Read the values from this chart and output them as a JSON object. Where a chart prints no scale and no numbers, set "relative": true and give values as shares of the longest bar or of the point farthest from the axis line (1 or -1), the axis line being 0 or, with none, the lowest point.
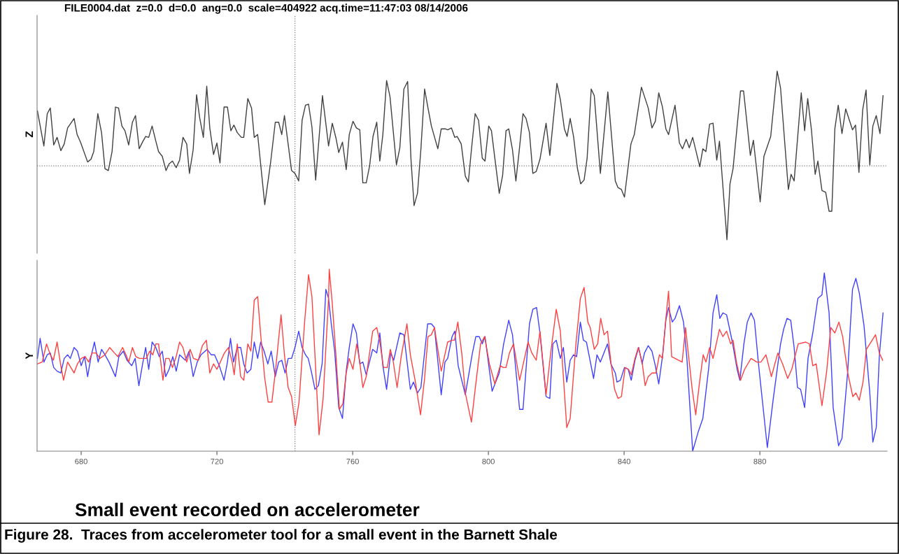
{
  "chart_data": [
    {
      "type": "line",
      "title": "FILE0004.dat  z=0.0  d=0.0  ang=0.0  scale=404922 acq.time=11:47:03 08/14/2006",
      "ylabel": "Z",
      "relative": true,
      "xlim": [
        667,
        917.5
      ],
      "tick_labels": false,
      "line_style": "solid",
      "ref_lines": [
        {
          "axis": "y",
          "value": 0,
          "color": "#808080",
          "line_style": "dotted"
        },
        {
          "axis": "x",
          "value": 743,
          "color": "#808080",
          "line_style": "dotted"
        }
      ],
      "series": [
        {
          "color": "#404040",
          "x": [
            667.1,
            669.0,
            670.0,
            670.9,
            671.9,
            672.9,
            674.0,
            675.0,
            676.0,
            677.9,
            678.8,
            679.8,
            681.9,
            682.9,
            683.7,
            684.9,
            686.0,
            687.0,
            688.0,
            689.1,
            690.1,
            691.0,
            692.0,
            692.9,
            694.0,
            695.1,
            696.0,
            697.1,
            698.2,
            699.0,
            699.9,
            700.9,
            702.0,
            702.8,
            703.9,
            705.0,
            705.9,
            706.9,
            708.0,
            709.0,
            710.0,
            711.1,
            711.9,
            713.0,
            714.0,
            714.9,
            716.0,
            717.0,
            717.9,
            719.0,
            720.0,
            720.9,
            722.1,
            723.1,
            724.1,
            725.0,
            726.0,
            727.2,
            727.9,
            729.1,
            730.2,
            731.0,
            732.0,
            734.1,
            735.8,
            737.2,
            738.2,
            739.1,
            739.9,
            742.0,
            743.0,
            744.1,
            745.1,
            746.1,
            747.0,
            748.0,
            749.1,
            751.1,
            752.9,
            754.0,
            755.1,
            755.9,
            757.0,
            758.1,
            759.0,
            760.1,
            761.1,
            762.1,
            763.0,
            764.0,
            765.0,
            766.0,
            767.1,
            768.0,
            768.9,
            770.0,
            771.0,
            772.9,
            773.9,
            775.1,
            776.2,
            777.2,
            778.1,
            779.1,
            780.1,
            781.2,
            782.2,
            783.2,
            785.1,
            786.1,
            787.3,
            788.0,
            789.1,
            790.1,
            790.8,
            792.0,
            793.2,
            794.1,
            795.0,
            796.1,
            797.1,
            798.2,
            799.0,
            800.1,
            800.9,
            801.9,
            803.2,
            804.2,
            805.2,
            806.0,
            807.1,
            808.1,
            809.0,
            810.2,
            811.1,
            812.1,
            813.1,
            814.1,
            815.2,
            817.0,
            818.1,
            820.2,
            821.2,
            822.4,
            823.2,
            824.1,
            825.1,
            826.2,
            827.2,
            828.2,
            829.1,
            830.3,
            831.2,
            833.0,
            835.2,
            837.4,
            838.2,
            839.2,
            840.1,
            842.0,
            843.0,
            845.1,
            847.1,
            848.2,
            849.2,
            850.2,
            851.3,
            852.3,
            853.1,
            855.0,
            856.3,
            857.2,
            858.3,
            859.2,
            860.2,
            862.3,
            863.2,
            864.1,
            865.2,
            866.2,
            867.3,
            868.1,
            870.3,
            871.2,
            872.1,
            874.3,
            875.2,
            877.2,
            878.1,
            880.1,
            881.2,
            883.2,
            885.1,
            886.1,
            888.4,
            889.2,
            890.1,
            892.2,
            893.2,
            894.1,
            895.2,
            896.3,
            897.1,
            898.3,
            899.4,
            900.4,
            901.2,
            902.1,
            903.1,
            904.2,
            905.3,
            907.3,
            908.2,
            909.2,
            910.3,
            911.3,
            912.4,
            913.3,
            914.3,
            915.4,
            916.3
          ],
          "values": [
            0.58,
            0.21,
            0.55,
            0.61,
            0.22,
            0.3,
            0.16,
            0.23,
            0.4,
            0.5,
            0.33,
            0.25,
            0.04,
            0.07,
            0.15,
            0.55,
            0.35,
            -0.03,
            -0.05,
            0.15,
            0.62,
            0.61,
            0.42,
            0.37,
            0.22,
            0.46,
            0.53,
            0.18,
            0.26,
            0.31,
            0.3,
            0.42,
            0.26,
            0.15,
            0.1,
            -0.05,
            0.02,
            0.05,
            -0.02,
            0.06,
            0.3,
            0.23,
            -0.08,
            0.17,
            0.75,
            0.51,
            0.3,
            0.84,
            0.4,
            0.12,
            0.24,
            0.03,
            0.62,
            0.62,
            0.37,
            0.43,
            0.35,
            0.3,
            0.3,
            0.71,
            0.61,
            0.3,
            0.33,
            -0.41,
            0.03,
            0.46,
            0.46,
            0.33,
            0.53,
            -0.05,
            -0.08,
            -0.16,
            0.48,
            0.64,
            0.65,
            0.41,
            -0.15,
            0.74,
            0.21,
            0.45,
            0.29,
            0.14,
            0.25,
            -0.04,
            0.33,
            0.47,
            0.4,
            0.38,
            -0.18,
            -0.18,
            0.0,
            0.31,
            0.46,
            0.05,
            0.33,
            0.9,
            0.73,
            0.01,
            0.19,
            0.81,
            0.89,
            0.06,
            -0.42,
            -0.29,
            0.17,
            0.81,
            0.61,
            0.42,
            0.18,
            0.39,
            0.39,
            0.38,
            0.4,
            0.3,
            0.31,
            0.23,
            -0.11,
            -0.17,
            0.17,
            0.55,
            0.48,
            0.08,
            0.05,
            0.42,
            0.37,
            0.08,
            -0.29,
            -0.1,
            0.37,
            0.39,
            0.17,
            -0.16,
            0.13,
            0.55,
            0.5,
            0.35,
            -0.08,
            -0.06,
            0.07,
            0.45,
            0.11,
            0.87,
            0.7,
            0.39,
            0.31,
            0.5,
            0.31,
            -0.02,
            -0.19,
            -0.15,
            0.08,
            0.81,
            0.74,
            -0.08,
            0.78,
            -0.16,
            -0.23,
            -0.25,
            -0.33,
            0.23,
            0.33,
            0.83,
            0.61,
            0.4,
            0.47,
            0.77,
            0.62,
            0.39,
            0.33,
            0.64,
            0.24,
            0.18,
            0.28,
            0.19,
            0.3,
            -0.01,
            0.18,
            0.15,
            0.44,
            0.45,
            0.06,
            0.26,
            -0.78,
            -0.19,
            -0.03,
            0.79,
            0.79,
            0.11,
            0.27,
            -0.38,
            0.1,
            0.31,
            1.0,
            0.82,
            -0.25,
            -0.09,
            -0.16,
            0.77,
            0.37,
            0.71,
            0.38,
            -0.09,
            0.05,
            -0.26,
            -0.28,
            -0.48,
            -0.48,
            0.39,
            0.64,
            0.34,
            0.6,
            0.38,
            0.43,
            -0.07,
            0.59,
            0.8,
            0.01,
            0.42,
            0.53,
            0.34,
            0.74
          ]
        }
      ]
    },
    {
      "type": "line",
      "ylabel": "Y",
      "relative": true,
      "xlim": [
        667,
        917.5
      ],
      "xticks": [
        680,
        720,
        760,
        800,
        840,
        880
      ],
      "tick_labels": "x",
      "line_style": "solid",
      "ref_lines": [
        {
          "axis": "x",
          "value": 743,
          "color": "#808080",
          "line_style": "dotted"
        }
      ],
      "annotations": [
        "Small event recorded on accelerometer",
        "Figure 28.  Traces from accelerometer tool for a small event in the Barnett Shale"
      ],
      "series": [
        {
          "color": "#4040ff",
          "x": [
            667.1,
            667.9,
            669.0,
            670.0,
            670.9,
            671.9,
            672.9,
            674.0,
            675.0,
            676.0,
            676.8,
            677.9,
            678.9,
            680.0,
            681.0,
            681.9,
            682.9,
            683.9,
            685.0,
            686.0,
            687.0,
            688.2,
            690.1,
            691.1,
            692.4,
            693.5,
            694.9,
            695.9,
            697.0,
            698.1,
            699.0,
            699.9,
            700.9,
            702.0,
            703.0,
            703.9,
            704.9,
            705.9,
            707.0,
            708.0,
            709.0,
            710.7,
            711.8,
            713.0,
            714.2,
            715.3,
            717.1,
            718.3,
            719.3,
            720.7,
            722.1,
            723.1,
            724.0,
            724.9,
            726.0,
            727.0,
            727.9,
            728.9,
            730.0,
            731.0,
            732.0,
            732.9,
            733.9,
            735.0,
            736.0,
            737.2,
            738.2,
            739.1,
            740.1,
            741.0,
            742.0,
            743.0,
            744.1,
            745.1,
            746.1,
            746.9,
            747.8,
            748.9,
            749.9,
            751.0,
            752.1,
            752.9,
            753.7,
            754.7,
            755.9,
            757.0,
            758.1,
            759.0,
            760.1,
            761.1,
            762.1,
            763.0,
            764.0,
            765.9,
            767.1,
            768.0,
            768.9,
            770.0,
            771.2,
            772.1,
            773.9,
            775.1,
            777.0,
            777.9,
            779.1,
            780.1,
            782.1,
            783.2,
            784.1,
            786.1,
            787.2,
            788.0,
            789.3,
            790.1,
            791.1,
            793.2,
            795.2,
            796.3,
            797.3,
            798.2,
            799.0,
            801.1,
            803.2,
            804.5,
            806.0,
            807.1,
            809.2,
            810.2,
            812.1,
            813.1,
            814.2,
            815.2,
            817.0,
            818.1,
            819.0,
            820.0,
            821.2,
            822.1,
            823.1,
            824.1,
            825.1,
            826.0,
            827.1,
            828.0,
            828.9,
            831.0,
            832.0,
            833.0,
            835.1,
            836.1,
            837.4,
            837.9,
            838.9,
            840.1,
            841.2,
            842.1,
            843.2,
            844.3,
            845.3,
            846.0,
            847.1,
            848.2,
            849.2,
            850.2,
            851.3,
            852.3,
            853.1,
            854.2,
            855.0,
            856.3,
            857.5,
            858.5,
            860.2,
            861.9,
            863.2,
            865.0,
            866.2,
            867.3,
            868.2,
            869.1,
            870.2,
            871.9,
            873.3,
            874.1,
            875.3,
            876.3,
            877.4,
            878.4,
            879.6,
            882.2,
            883.9,
            886.1,
            887.0,
            888.0,
            889.1,
            890.1,
            891.1,
            892.0,
            893.2,
            894.2,
            895.6,
            897.1,
            898.3,
            899.0,
            900.4,
            901.6,
            903.2,
            904.2,
            905.9,
            907.3,
            908.3,
            909.3,
            910.7,
            912.4,
            913.3,
            914.3,
            915.2,
            916.3
          ],
          "values": [
            0.51,
            0.62,
            0.49,
            0.53,
            0.54,
            0.46,
            0.44,
            0.43,
            0.51,
            0.53,
            0.51,
            0.57,
            0.55,
            0.47,
            0.52,
            0.41,
            0.52,
            0.6,
            0.49,
            0.56,
            0.53,
            0.49,
            0.41,
            0.52,
            0.55,
            0.5,
            0.47,
            0.51,
            0.36,
            0.48,
            0.57,
            0.45,
            0.6,
            0.57,
            0.52,
            0.55,
            0.41,
            0.45,
            0.52,
            0.44,
            0.53,
            0.5,
            0.55,
            0.41,
            0.49,
            0.53,
            0.56,
            0.53,
            0.53,
            0.47,
            0.39,
            0.49,
            0.62,
            0.49,
            0.57,
            0.57,
            0.48,
            0.43,
            0.45,
            0.6,
            0.51,
            0.6,
            0.55,
            0.48,
            0.55,
            0.41,
            0.49,
            0.5,
            0.43,
            0.51,
            0.51,
            0.57,
            0.66,
            0.57,
            0.53,
            0.51,
            0.44,
            0.34,
            0.36,
            0.48,
            0.89,
            0.84,
            0.7,
            0.55,
            0.24,
            0.18,
            0.44,
            0.57,
            0.7,
            0.65,
            0.48,
            0.49,
            0.42,
            0.56,
            0.54,
            0.65,
            0.47,
            0.34,
            0.54,
            0.5,
            0.65,
            0.64,
            0.34,
            0.38,
            0.32,
            0.35,
            0.7,
            0.7,
            0.68,
            0.31,
            0.49,
            0.51,
            0.63,
            0.66,
            0.47,
            0.31,
            0.53,
            0.63,
            0.63,
            0.59,
            0.63,
            0.33,
            0.43,
            0.59,
            0.72,
            0.64,
            0.23,
            0.23,
            0.7,
            0.78,
            0.79,
            0.65,
            0.3,
            0.29,
            0.59,
            0.61,
            0.51,
            0.57,
            0.38,
            0.5,
            0.53,
            0.52,
            0.71,
            0.61,
            0.6,
            0.4,
            0.53,
            0.49,
            0.59,
            0.48,
            0.43,
            0.38,
            0.39,
            0.46,
            0.45,
            0.39,
            0.5,
            0.57,
            0.48,
            0.54,
            0.58,
            0.55,
            0.47,
            0.37,
            0.52,
            0.72,
            0.79,
            0.71,
            0.73,
            0.8,
            0.71,
            0.51,
            0.0,
            0.11,
            0.18,
            0.47,
            0.76,
            0.86,
            0.73,
            0.76,
            0.75,
            0.6,
            0.45,
            0.39,
            0.59,
            0.71,
            0.76,
            0.72,
            0.48,
            0.02,
            0.28,
            0.59,
            0.67,
            0.73,
            0.72,
            0.57,
            0.35,
            0.34,
            0.24,
            0.51,
            0.65,
            0.84,
            0.86,
            0.98,
            0.76,
            0.24,
            0.03,
            0.07,
            0.44,
            0.89,
            0.95,
            0.87,
            0.69,
            0.32,
            0.05,
            0.13,
            0.52,
            0.76
          ]
        },
        {
          "color": "#ff4040",
          "x": [
            667.1,
            668.5,
            669.8,
            670.9,
            671.8,
            672.9,
            674.0,
            674.8,
            676.0,
            677.9,
            678.9,
            680.0,
            681.2,
            682.2,
            683.2,
            684.4,
            685.5,
            687.0,
            688.4,
            689.8,
            690.8,
            692.2,
            693.2,
            694.0,
            695.1,
            696.1,
            697.2,
            698.2,
            699.2,
            700.2,
            701.1,
            702.0,
            702.8,
            704.1,
            704.9,
            705.9,
            706.9,
            708.0,
            709.0,
            710.0,
            711.1,
            712.1,
            713.1,
            714.5,
            715.7,
            716.9,
            717.9,
            719.0,
            720.0,
            721.0,
            722.2,
            723.4,
            724.5,
            725.1,
            726.0,
            727.0,
            727.9,
            729.1,
            730.0,
            731.0,
            732.0,
            732.9,
            734.1,
            735.1,
            736.2,
            737.3,
            738.9,
            739.9,
            741.0,
            742.0,
            743.1,
            744.2,
            745.8,
            747.0,
            748.0,
            750.1,
            751.3,
            752.9,
            753.1,
            754.0,
            755.1,
            756.1,
            757.1,
            758.1,
            759.0,
            760.1,
            761.2,
            762.1,
            763.0,
            764.0,
            765.9,
            767.1,
            768.0,
            769.1,
            770.2,
            771.1,
            771.9,
            773.1,
            774.3,
            776.0,
            777.0,
            778.4,
            780.0,
            781.2,
            782.2,
            783.2,
            784.1,
            786.1,
            788.0,
            789.3,
            790.0,
            791.0,
            792.2,
            793.2,
            795.0,
            796.1,
            797.7,
            798.9,
            800.3,
            801.9,
            803.5,
            804.4,
            805.2,
            806.2,
            807.4,
            809.2,
            811.7,
            812.8,
            814.1,
            815.2,
            817.0,
            818.3,
            820.0,
            821.2,
            823.1,
            824.1,
            825.8,
            827.1,
            828.2,
            829.3,
            830.0,
            831.2,
            832.2,
            833.1,
            834.1,
            835.1,
            836.1,
            837.2,
            838.2,
            839.2,
            840.3,
            841.3,
            842.1,
            843.2,
            844.2,
            845.3,
            846.2,
            847.1,
            848.2,
            849.4,
            850.4,
            851.3,
            852.3,
            853.1,
            854.0,
            855.0,
            857.1,
            858.1,
            860.0,
            861.1,
            862.3,
            863.3,
            864.1,
            865.2,
            866.2,
            868.1,
            869.1,
            870.2,
            871.4,
            872.1,
            873.1,
            874.3,
            875.5,
            877.4,
            879.1,
            880.3,
            881.8,
            883.4,
            885.3,
            886.7,
            888.2,
            889.4,
            891.3,
            893.5,
            894.6,
            895.6,
            896.6,
            898.3,
            899.7,
            900.9,
            902.1,
            903.3,
            904.4,
            905.9,
            907.4,
            908.3,
            909.3,
            910.4,
            911.4,
            914.1,
            915.2,
            916.2
          ],
          "values": [
            0.48,
            0.49,
            0.59,
            0.53,
            0.5,
            0.6,
            0.47,
            0.39,
            0.49,
            0.43,
            0.48,
            0.51,
            0.52,
            0.49,
            0.54,
            0.54,
            0.51,
            0.53,
            0.57,
            0.54,
            0.52,
            0.57,
            0.53,
            0.49,
            0.57,
            0.52,
            0.51,
            0.51,
            0.51,
            0.55,
            0.53,
            0.59,
            0.59,
            0.39,
            0.51,
            0.51,
            0.46,
            0.52,
            0.6,
            0.57,
            0.49,
            0.56,
            0.51,
            0.5,
            0.58,
            0.61,
            0.43,
            0.48,
            0.45,
            0.49,
            0.54,
            0.57,
            0.49,
            0.42,
            0.59,
            0.41,
            0.39,
            0.59,
            0.55,
            0.83,
            0.85,
            0.64,
            0.4,
            0.27,
            0.27,
            0.45,
            0.75,
            0.53,
            0.35,
            0.3,
            0.14,
            0.27,
            0.7,
            0.97,
            0.85,
            0.09,
            0.29,
            0.84,
            1.0,
            0.81,
            0.52,
            0.23,
            0.26,
            0.43,
            0.51,
            0.45,
            0.59,
            0.49,
            0.35,
            0.41,
            0.66,
            0.68,
            0.6,
            0.46,
            0.46,
            0.56,
            0.5,
            0.35,
            0.52,
            0.7,
            0.53,
            0.39,
            0.2,
            0.4,
            0.63,
            0.64,
            0.68,
            0.44,
            0.6,
            0.61,
            0.61,
            0.71,
            0.53,
            0.32,
            0.16,
            0.34,
            0.59,
            0.63,
            0.48,
            0.37,
            0.47,
            0.46,
            0.46,
            0.54,
            0.59,
            0.39,
            0.6,
            0.54,
            0.5,
            0.66,
            0.31,
            0.53,
            0.78,
            0.66,
            0.13,
            0.18,
            0.59,
            0.84,
            0.9,
            0.71,
            0.68,
            0.56,
            0.59,
            0.73,
            0.64,
            0.66,
            0.49,
            0.34,
            0.29,
            0.3,
            0.46,
            0.45,
            0.42,
            0.51,
            0.57,
            0.49,
            0.36,
            0.41,
            0.43,
            0.43,
            0.53,
            0.51,
            0.73,
            0.88,
            0.52,
            0.51,
            0.49,
            0.68,
            0.35,
            0.2,
            0.39,
            0.53,
            0.49,
            0.57,
            0.51,
            0.67,
            0.63,
            0.66,
            0.59,
            0.61,
            0.49,
            0.39,
            0.45,
            0.51,
            0.49,
            0.49,
            0.53,
            0.41,
            0.54,
            0.48,
            0.4,
            0.45,
            0.59,
            0.6,
            0.59,
            0.47,
            0.48,
            0.25,
            0.44,
            0.68,
            0.65,
            0.71,
            0.63,
            0.43,
            0.3,
            0.32,
            0.28,
            0.38,
            0.56,
            0.64,
            0.54,
            0.5
          ]
        }
      ]
    }
  ]
}
